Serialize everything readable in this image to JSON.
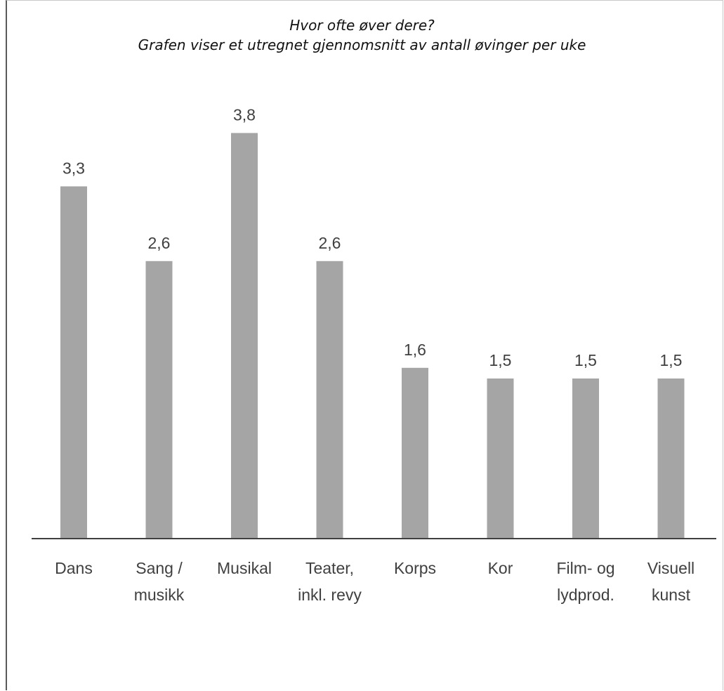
{
  "chart_data": {
    "type": "bar",
    "title": "Hvor ofte øver dere?",
    "subtitle": "Grafen viser et utregnet gjennomsnitt av antall øvinger per uke",
    "categories": [
      [
        "Dans"
      ],
      [
        "Sang /",
        "musikk"
      ],
      [
        "Musikal"
      ],
      [
        "Teater,",
        "inkl. revy"
      ],
      [
        "Korps"
      ],
      [
        "Kor"
      ],
      [
        "Film- og",
        "lydprod."
      ],
      [
        "Visuell",
        "kunst"
      ]
    ],
    "values": [
      3.3,
      2.6,
      3.8,
      2.6,
      1.6,
      1.5,
      1.5,
      1.5
    ],
    "value_labels": [
      "3,3",
      "2,6",
      "3,8",
      "2,6",
      "1,6",
      "1,5",
      "1,5",
      "1,5"
    ],
    "ylim": [
      0,
      4
    ],
    "grid": false,
    "colors": {
      "bar": "#a5a5a5",
      "axis": "#404040",
      "text": "#404040"
    }
  }
}
